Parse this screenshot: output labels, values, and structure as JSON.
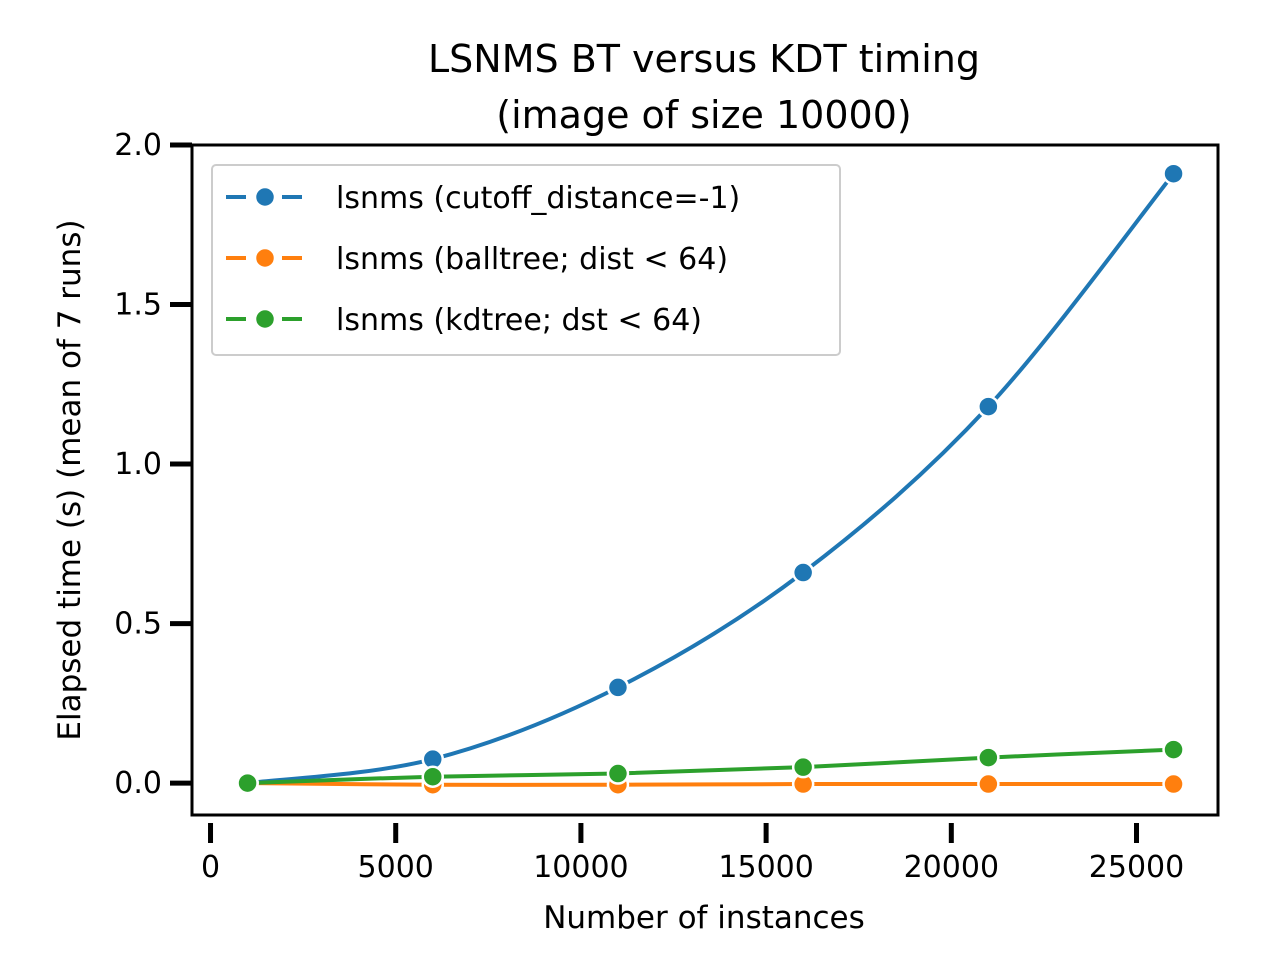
{
  "chart_data": {
    "type": "line",
    "title": "LSNMS BT versus KDT timing",
    "subtitle": "(image of size 10000)",
    "xlabel": "Number of instances",
    "ylabel": "Elapsed time (s) (mean of 7 runs)",
    "xlim": [
      -500,
      27200
    ],
    "ylim": [
      -0.1,
      2.0
    ],
    "xticks": [
      0,
      5000,
      10000,
      15000,
      20000,
      25000
    ],
    "xtick_labels": [
      "0",
      "5000",
      "10000",
      "15000",
      "20000",
      "25000"
    ],
    "yticks": [
      0.0,
      0.5,
      1.0,
      1.5,
      2.0
    ],
    "ytick_labels": [
      "0.0",
      "0.5",
      "1.0",
      "1.5",
      "2.0"
    ],
    "grid": false,
    "legend_position": "top-left",
    "series": [
      {
        "name": "lsnms (cutoff_distance=-1)",
        "color": "#1f77b4",
        "x": [
          1000,
          6000,
          11000,
          16000,
          21000,
          26000
        ],
        "values": [
          0.0,
          0.075,
          0.3,
          0.66,
          1.18,
          1.91
        ]
      },
      {
        "name": "lsnms (balltree; dist < 64)",
        "color": "#ff7f0e",
        "x": [
          1000,
          6000,
          11000,
          16000,
          21000,
          26000
        ],
        "values": [
          0.0,
          -0.005,
          -0.005,
          -0.003,
          -0.003,
          -0.003
        ]
      },
      {
        "name": "lsnms (kdtree; dst < 64)",
        "color": "#2ca02c",
        "x": [
          1000,
          6000,
          11000,
          16000,
          21000,
          26000
        ],
        "values": [
          0.0,
          0.02,
          0.03,
          0.05,
          0.08,
          0.105
        ]
      }
    ]
  }
}
